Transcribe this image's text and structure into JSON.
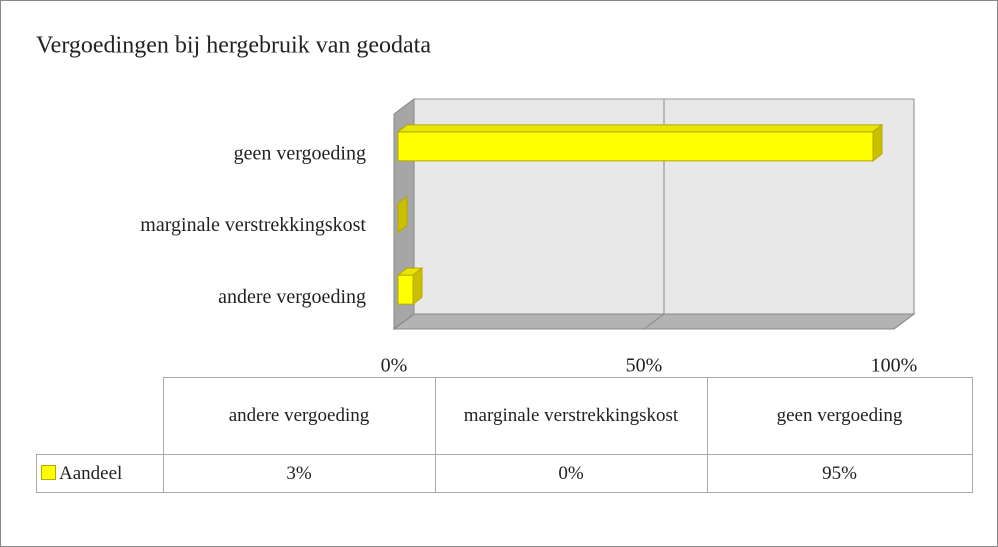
{
  "chart_data": {
    "type": "bar",
    "title": "Vergoedingen bij hergebruik van geodata",
    "categories": [
      "andere vergoeding",
      "marginale verstrekkingskost",
      "geen vergoeding"
    ],
    "series": [
      {
        "name": "Aandeel",
        "color": "#ffff00",
        "values": [
          3,
          0,
          95
        ]
      }
    ],
    "value_labels": [
      "3%",
      "0%",
      "95%"
    ],
    "xlim": [
      0,
      100
    ],
    "xticks": [
      {
        "value": 0,
        "label": "0%"
      },
      {
        "value": 50,
        "label": "50%"
      },
      {
        "value": 100,
        "label": "100%"
      }
    ],
    "grid": true,
    "data_table": true
  }
}
